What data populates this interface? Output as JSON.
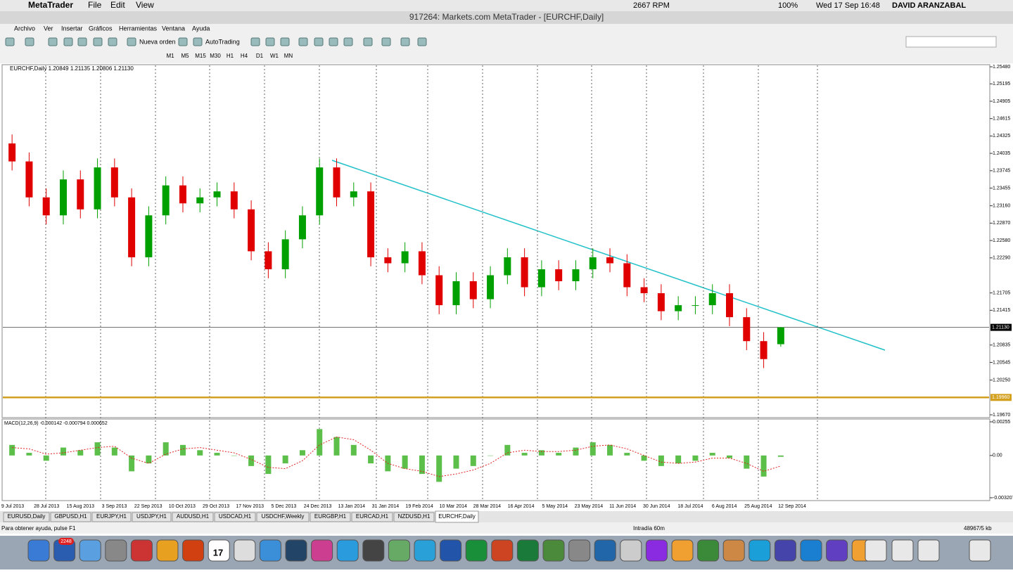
{
  "mac_menubar": {
    "app": "MetaTrader",
    "menus": [
      "File",
      "Edit",
      "View"
    ],
    "status": [
      "2667 RPM",
      "100%",
      "Wed 17 Sep 16:48",
      "DAVID ARANZABAL"
    ]
  },
  "window_title": "917264: Markets.com MetaTrader - [EURCHF,Daily]",
  "menu": [
    "Archivo",
    "Ver",
    "Insertar",
    "Gráficos",
    "Herramientas",
    "Ventana",
    "Ayuda"
  ],
  "toolbar": {
    "new_order": "Nueva orden",
    "autotrading": "AutoTrading",
    "timeframes": [
      "M1",
      "M5",
      "M15",
      "M30",
      "H1",
      "H4",
      "D1",
      "W1",
      "MN"
    ]
  },
  "chart": {
    "type": "candlestick",
    "symbol_info": "EURCHF,Daily  1.20849 1.21135 1.20806 1.21130",
    "candles": {
      "open": [
        1.242,
        1.239,
        1.233,
        1.23,
        1.236,
        1.231,
        1.238,
        1.233,
        1.223,
        1.23,
        1.235,
        1.232,
        1.233,
        1.234,
        1.231,
        1.224,
        1.221,
        1.226,
        1.23,
        1.238,
        1.233,
        1.234,
        1.223,
        1.222,
        1.224,
        1.22,
        1.215,
        1.219,
        1.216,
        1.22,
        1.223,
        1.218,
        1.221,
        1.219,
        1.221,
        1.223,
        1.222,
        1.218,
        1.217,
        1.214,
        1.215,
        1.215,
        1.217,
        1.213,
        1.209,
        1.20849
      ],
      "high": [
        1.2435,
        1.2405,
        1.2345,
        1.2375,
        1.2375,
        1.2395,
        1.2395,
        1.2345,
        1.2315,
        1.2365,
        1.2365,
        1.2345,
        1.2355,
        1.2355,
        1.2325,
        1.2255,
        1.2275,
        1.2315,
        1.2395,
        1.2395,
        1.2355,
        1.2355,
        1.2245,
        1.2255,
        1.2255,
        1.2215,
        1.2205,
        1.2205,
        1.2215,
        1.2245,
        1.2245,
        1.2225,
        1.2225,
        1.2225,
        1.2245,
        1.2245,
        1.2235,
        1.2195,
        1.2185,
        1.2165,
        1.2165,
        1.2185,
        1.2185,
        1.2145,
        1.2105,
        1.21135
      ],
      "low": [
        1.2375,
        1.2315,
        1.2285,
        1.2285,
        1.2295,
        1.2295,
        1.2315,
        1.2215,
        1.2215,
        1.2285,
        1.2305,
        1.2305,
        1.2315,
        1.2295,
        1.2225,
        1.2195,
        1.2195,
        1.2245,
        1.2285,
        1.2315,
        1.2315,
        1.2215,
        1.2205,
        1.2205,
        1.2185,
        1.2135,
        1.2135,
        1.2145,
        1.2145,
        1.2185,
        1.2165,
        1.2165,
        1.2175,
        1.2175,
        1.2195,
        1.2205,
        1.2165,
        1.2155,
        1.2125,
        1.2125,
        1.2135,
        1.2135,
        1.2115,
        1.2075,
        1.2045,
        1.20806
      ],
      "close": [
        1.239,
        1.233,
        1.23,
        1.236,
        1.231,
        1.238,
        1.233,
        1.223,
        1.23,
        1.235,
        1.232,
        1.233,
        1.234,
        1.231,
        1.224,
        1.221,
        1.226,
        1.23,
        1.238,
        1.233,
        1.234,
        1.223,
        1.222,
        1.224,
        1.22,
        1.215,
        1.219,
        1.216,
        1.22,
        1.223,
        1.218,
        1.221,
        1.219,
        1.221,
        1.223,
        1.222,
        1.218,
        1.217,
        1.214,
        1.215,
        1.215,
        1.217,
        1.213,
        1.209,
        1.206,
        1.2113
      ]
    },
    "ylim": [
      1.1967,
      1.2548
    ],
    "yticks": [
      {
        "value": 1.2548,
        "label": "1.25480"
      },
      {
        "value": 1.25195,
        "label": "1.25195"
      },
      {
        "value": 1.24905,
        "label": "1.24905"
      },
      {
        "value": 1.24615,
        "label": "1.24615"
      },
      {
        "value": 1.24325,
        "label": "1.24325"
      },
      {
        "value": 1.24035,
        "label": "1.24035"
      },
      {
        "value": 1.23745,
        "label": "1.23745"
      },
      {
        "value": 1.23455,
        "label": "1.23455"
      },
      {
        "value": 1.2316,
        "label": "1.23160"
      },
      {
        "value": 1.2287,
        "label": "1.22870"
      },
      {
        "value": 1.2258,
        "label": "1.22580"
      },
      {
        "value": 1.2229,
        "label": "1.22290"
      },
      {
        "value": 1.21705,
        "label": "1.21705"
      },
      {
        "value": 1.21415,
        "label": "1.21415"
      },
      {
        "value": 1.20835,
        "label": "1.20835"
      },
      {
        "value": 1.20545,
        "label": "1.20545"
      },
      {
        "value": 1.2025,
        "label": "1.20250"
      },
      {
        "value": 1.1967,
        "label": "1.19670"
      }
    ],
    "current_price": {
      "value": 1.2113,
      "label": "1.21130"
    },
    "level": {
      "value": 1.1996,
      "label": "1.19960",
      "color": "#d4a020"
    },
    "bull_color": "#00a000",
    "bear_color": "#e00000",
    "x_labels": [
      "9 Jul 2013",
      "28 Jul 2013",
      "15 Aug 2013",
      "3 Sep 2013",
      "22 Sep 2013",
      "10 Oct 2013",
      "29 Oct 2013",
      "17 Nov 2013",
      "5 Dec 2013",
      "24 Dec 2013",
      "13 Jan 2014",
      "31 Jan 2014",
      "19 Feb 2014",
      "10 Mar 2014",
      "28 Mar 2014",
      "16 Apr 2014",
      "5 May 2014",
      "23 May 2014",
      "11 Jun 2014",
      "30 Jun 2014",
      "18 Jul 2014",
      "6 Aug 2014",
      "25 Aug 2014",
      "12 Sep 2014"
    ],
    "macd": {
      "label": "MACD(12,26,9) -0.000142 -0.000794 0.000652",
      "histogram": [
        0.0008,
        0.0002,
        -0.0004,
        0.0006,
        0.0004,
        0.001,
        0.0006,
        -0.0012,
        -0.0006,
        0.001,
        0.0008,
        0.0004,
        0.0002,
        0.0,
        -0.0008,
        -0.0014,
        -0.0006,
        0.0004,
        0.002,
        0.0014,
        0.0008,
        -0.0006,
        -0.0012,
        -0.001,
        -0.0014,
        -0.002,
        -0.001,
        -0.0008,
        0.0,
        0.0008,
        0.0002,
        0.0004,
        0.0002,
        0.0006,
        0.001,
        0.0008,
        0.0002,
        -0.0004,
        -0.0008,
        -0.0006,
        -0.0004,
        0.0002,
        -0.0002,
        -0.001,
        -0.0016,
        -0.0001
      ],
      "signal": [
        0.0006,
        0.0005,
        0.0001,
        0.0002,
        0.0004,
        0.0006,
        0.0007,
        -0.0002,
        -0.0006,
        0.0001,
        0.0005,
        0.0006,
        0.0004,
        0.0002,
        -0.0003,
        -0.0009,
        -0.001,
        -0.0004,
        0.0008,
        0.0014,
        0.0012,
        0.0004,
        -0.0006,
        -0.001,
        -0.0012,
        -0.0016,
        -0.0014,
        -0.0011,
        -0.0006,
        0.0002,
        0.0004,
        0.0003,
        0.0003,
        0.0004,
        0.0007,
        0.0008,
        0.0005,
        0.0,
        -0.0005,
        -0.0006,
        -0.0005,
        -0.0002,
        -0.0002,
        -0.0006,
        -0.0012,
        -0.0008
      ],
      "ylim": [
        -0.003207,
        0.00255
      ],
      "yticks": [
        {
          "value": 0.00255,
          "label": "0.00255"
        },
        {
          "value": 0,
          "label": "0.00"
        },
        {
          "value": -0.003207,
          "label": "-0.003207"
        }
      ]
    }
  },
  "tabs": [
    "EURUSD,Daily",
    "GBPUSD,H1",
    "EURJPY,H1",
    "USDJPY,H1",
    "AUDUSD,H1",
    "USDCAD,H1",
    "USDCHF,Weekly",
    "EURGBP,H1",
    "EURCAD,H1",
    "NZDUSD,H1",
    "EURCHF,Daily"
  ],
  "active_tab": 10,
  "status": {
    "help": "Para obtener ayuda, pulse F1",
    "profile": "Intradía 60m",
    "traffic": "48967/5 kb"
  },
  "dock": {
    "badges": [
      "2248",
      "17"
    ]
  }
}
